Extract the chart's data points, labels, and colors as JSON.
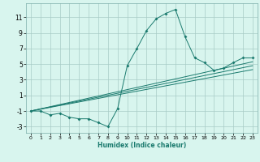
{
  "title": "",
  "xlabel": "Humidex (Indice chaleur)",
  "bg_color": "#d8f5ee",
  "grid_color": "#a8ccc6",
  "line_color": "#1a7a6e",
  "xlim": [
    -0.5,
    23.5
  ],
  "ylim": [
    -3.8,
    12.8
  ],
  "xticks": [
    0,
    1,
    2,
    3,
    4,
    5,
    6,
    7,
    8,
    9,
    10,
    11,
    12,
    13,
    14,
    15,
    16,
    17,
    18,
    19,
    20,
    21,
    22,
    23
  ],
  "yticks": [
    -3,
    -1,
    1,
    3,
    5,
    7,
    9,
    11
  ],
  "main_x": [
    0,
    1,
    2,
    3,
    4,
    5,
    6,
    7,
    8,
    9,
    10,
    11,
    12,
    13,
    14,
    15,
    16,
    17,
    18,
    19,
    20,
    21,
    22,
    23
  ],
  "main_y": [
    -1,
    -1,
    -1.5,
    -1.3,
    -1.8,
    -2,
    -2,
    -2.5,
    -3,
    -0.7,
    4.8,
    7,
    9.3,
    10.8,
    11.5,
    12,
    8.5,
    5.8,
    5.2,
    4.2,
    4.5,
    5.2,
    5.8,
    5.8
  ],
  "line2_x": [
    0,
    23
  ],
  "line2_y": [
    -1.0,
    5.3
  ],
  "line3_x": [
    0,
    23
  ],
  "line3_y": [
    -1.0,
    4.8
  ],
  "line4_x": [
    0,
    23
  ],
  "line4_y": [
    -1.0,
    4.3
  ]
}
